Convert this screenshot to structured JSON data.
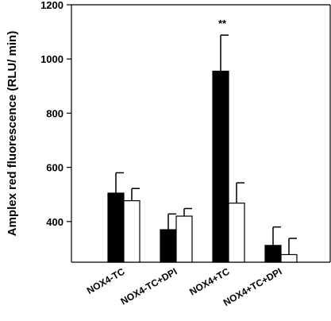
{
  "chart_data": {
    "type": "bar",
    "title": "",
    "xlabel": "",
    "ylabel": "Amplex red fluorescence (RLU/ min)",
    "ylim": [
      250,
      1200
    ],
    "yticks": [
      400,
      600,
      800,
      1000,
      1200
    ],
    "grid": false,
    "categories": [
      "NOX4-TC",
      "NOX4-TC+DPI",
      "NOX4+TC",
      "NOX4+TC+DPI"
    ],
    "series": [
      {
        "color": "#000000",
        "values": [
          505,
          370,
          955,
          312
        ],
        "errors": [
          75,
          58,
          133,
          68
        ]
      },
      {
        "color": "#ffffff",
        "values": [
          477,
          420,
          468,
          278
        ],
        "errors": [
          45,
          28,
          75,
          60
        ]
      }
    ],
    "annotations": [
      {
        "category": "NOX4+TC",
        "series": 0,
        "text": "**"
      }
    ]
  }
}
